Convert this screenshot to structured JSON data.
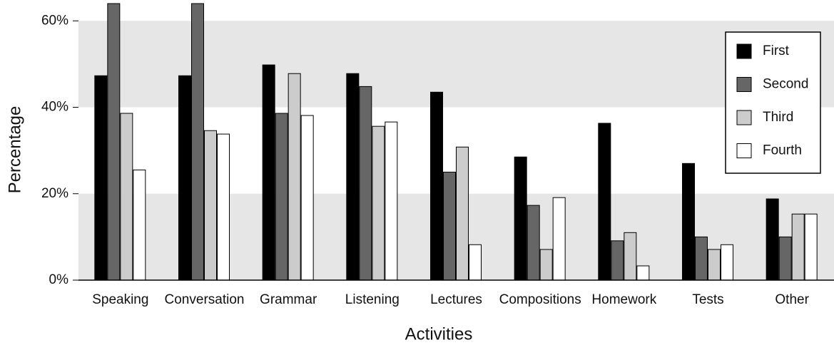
{
  "chart_data": {
    "type": "bar",
    "xlabel": "Activities",
    "ylabel": "Percentage",
    "categories": [
      "Speaking",
      "Conversation",
      "Grammar",
      "Listening",
      "Lectures",
      "Compositions",
      "Homework",
      "Tests",
      "Other"
    ],
    "series": [
      {
        "name": "First",
        "color": "#000000",
        "values": [
          47.3,
          47.3,
          49.8,
          47.8,
          43.5,
          28.5,
          36.3,
          27,
          18.8
        ]
      },
      {
        "name": "Second",
        "color": "#666666",
        "values": [
          64,
          64,
          38.6,
          44.8,
          25,
          17.3,
          9.1,
          10,
          10
        ]
      },
      {
        "name": "Third",
        "color": "#cccccc",
        "values": [
          38.6,
          34.6,
          47.8,
          35.6,
          30.8,
          7.1,
          11,
          7.1,
          15.3
        ]
      },
      {
        "name": "Fourth",
        "color": "#ffffff",
        "values": [
          25.5,
          33.8,
          38.1,
          36.6,
          8.2,
          19.1,
          3.3,
          8.2,
          15.3
        ]
      }
    ],
    "ylim": [
      0,
      64
    ],
    "yticks": [
      {
        "value": 0,
        "label": "0%"
      },
      {
        "value": 20,
        "label": "20%"
      },
      {
        "value": 40,
        "label": "40%"
      },
      {
        "value": 60,
        "label": "60%"
      }
    ],
    "grid": true,
    "legend": "upper right"
  }
}
